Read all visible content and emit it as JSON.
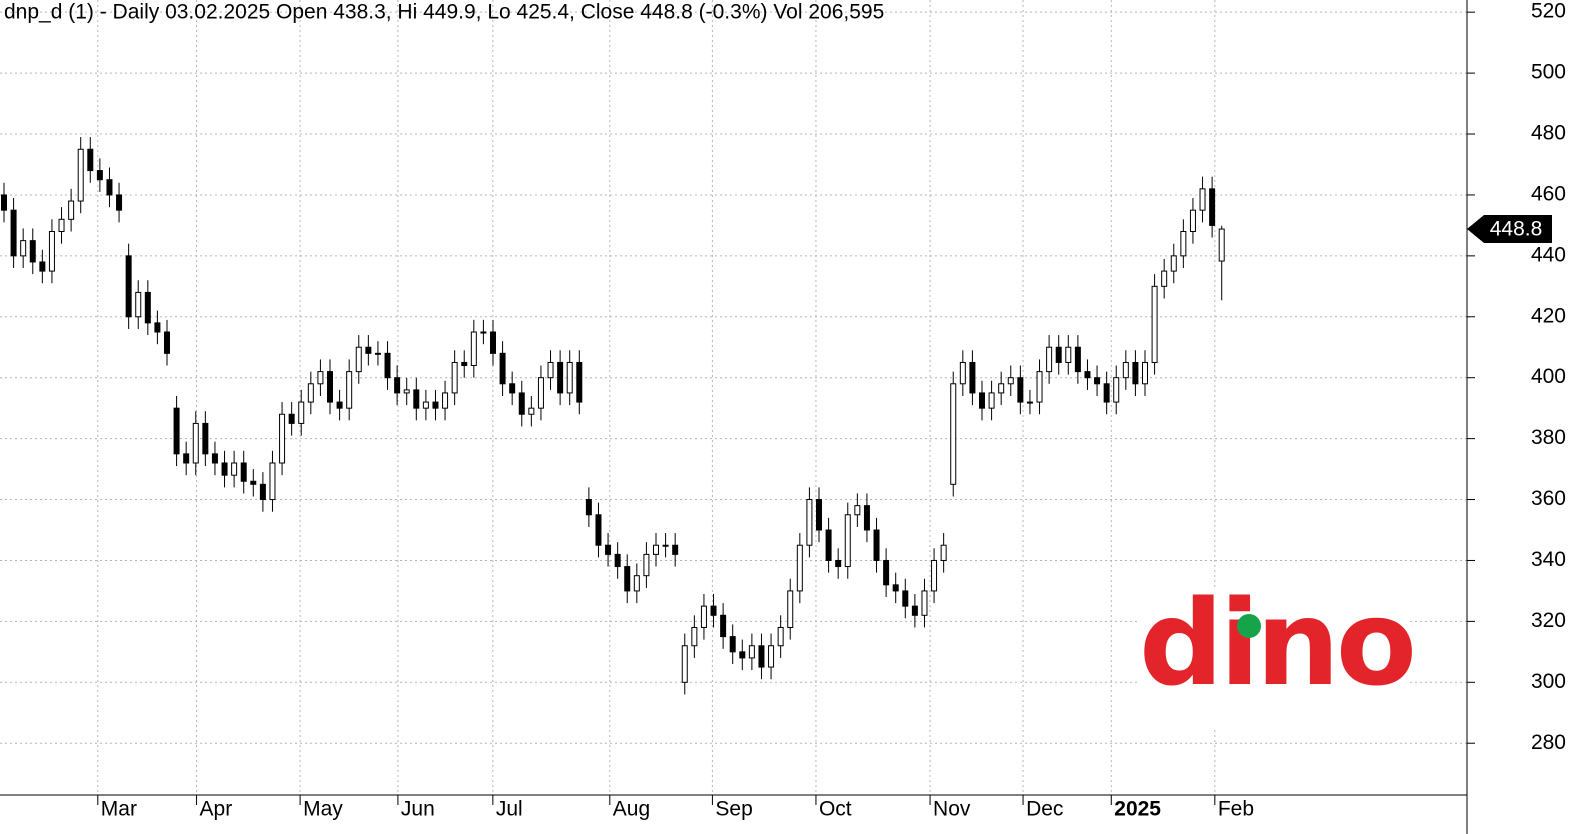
{
  "chart_data": {
    "type": "candlestick",
    "title": "dnp_d (1) - Daily 03.02.2025 Open 438.3, Hi 449.9, Lo 425.4, Close 448.8 (-0.3%) Vol 206,595",
    "logo_text": "dino",
    "up_color": "#ffffff",
    "down_color": "#000000",
    "grid": true,
    "xlim": [
      0,
      153
    ],
    "ylim": [
      263,
      524
    ],
    "xticks": [
      {
        "value": 10.2,
        "label": "Mar"
      },
      {
        "value": 20.5,
        "label": "Apr"
      },
      {
        "value": 31.3,
        "label": "May"
      },
      {
        "value": 41.5,
        "label": "Jun"
      },
      {
        "value": 51.4,
        "label": "Jul"
      },
      {
        "value": 63.6,
        "label": "Aug"
      },
      {
        "value": 74.3,
        "label": "Sep"
      },
      {
        "value": 85.1,
        "label": "Oct"
      },
      {
        "value": 97,
        "label": "Nov"
      },
      {
        "value": 106.7,
        "label": "Dec"
      },
      {
        "value": 115.9,
        "label": "2025"
      },
      {
        "value": 126.7,
        "label": "Feb"
      }
    ],
    "yticks": [
      280,
      300,
      320,
      340,
      360,
      380,
      400,
      420,
      440,
      460,
      480,
      500,
      520
    ],
    "open": [
      460,
      455,
      440,
      445,
      438,
      435,
      448,
      452,
      458,
      475,
      468,
      465,
      460,
      440,
      420,
      428,
      418,
      415,
      390,
      375,
      372,
      385,
      375,
      372,
      368,
      372,
      366,
      365,
      360,
      372,
      388,
      385,
      392,
      398,
      402,
      392,
      390,
      402,
      410,
      408,
      408,
      400,
      395,
      396,
      390,
      392,
      390,
      395,
      405,
      404,
      415,
      415,
      408,
      398,
      395,
      388,
      390,
      400,
      405,
      395,
      405,
      360,
      355,
      345,
      342,
      338,
      330,
      335,
      342,
      345,
      345,
      300,
      312,
      318,
      325,
      322,
      315,
      310,
      308,
      312,
      305,
      312,
      318,
      330,
      345,
      360,
      350,
      340,
      338,
      355,
      358,
      350,
      340,
      332,
      330,
      325,
      322,
      330,
      340,
      365,
      398,
      405,
      395,
      390,
      395,
      398,
      400,
      392,
      392,
      402,
      410,
      405,
      410,
      402,
      400,
      398,
      392,
      400,
      405,
      398,
      405,
      430,
      435,
      440,
      448,
      455,
      462,
      438.3
    ],
    "high": [
      464,
      459,
      449,
      449,
      442,
      452,
      456,
      462,
      479,
      479,
      472,
      469,
      464,
      444,
      432,
      432,
      422,
      419,
      394,
      379,
      389,
      389,
      379,
      376,
      376,
      376,
      370,
      369,
      376,
      392,
      392,
      396,
      402,
      406,
      406,
      396,
      406,
      414,
      414,
      412,
      412,
      404,
      400,
      400,
      396,
      396,
      399,
      409,
      409,
      419,
      419,
      419,
      412,
      402,
      399,
      394,
      404,
      409,
      409,
      409,
      409,
      364,
      359,
      349,
      346,
      342,
      339,
      346,
      349,
      349,
      349,
      316,
      322,
      329,
      329,
      326,
      319,
      314,
      316,
      316,
      316,
      322,
      334,
      349,
      364,
      364,
      354,
      344,
      359,
      362,
      362,
      354,
      344,
      336,
      334,
      329,
      334,
      344,
      349,
      402,
      409,
      409,
      399,
      399,
      402,
      404,
      404,
      396,
      406,
      414,
      414,
      414,
      414,
      406,
      404,
      402,
      404,
      409,
      409,
      409,
      434,
      439,
      444,
      452,
      459,
      466,
      466,
      449.9
    ],
    "low": [
      451,
      436,
      436,
      434,
      431,
      431,
      444,
      448,
      454,
      464,
      461,
      456,
      451,
      416,
      416,
      414,
      411,
      404,
      371,
      368,
      368,
      371,
      368,
      364,
      364,
      362,
      361,
      356,
      356,
      368,
      381,
      381,
      388,
      394,
      388,
      386,
      386,
      398,
      404,
      404,
      396,
      391,
      391,
      386,
      386,
      386,
      386,
      391,
      400,
      400,
      411,
      404,
      394,
      391,
      384,
      384,
      386,
      396,
      391,
      391,
      388,
      351,
      341,
      338,
      334,
      326,
      326,
      331,
      338,
      341,
      338,
      296,
      308,
      314,
      318,
      311,
      306,
      304,
      304,
      301,
      301,
      308,
      314,
      326,
      341,
      346,
      336,
      334,
      334,
      351,
      346,
      336,
      328,
      326,
      321,
      318,
      318,
      326,
      336,
      361,
      394,
      391,
      386,
      386,
      391,
      394,
      388,
      388,
      388,
      398,
      401,
      401,
      398,
      396,
      394,
      388,
      388,
      396,
      394,
      394,
      401,
      426,
      431,
      436,
      444,
      451,
      446,
      425.4
    ],
    "close": [
      455,
      440,
      445,
      438,
      435,
      448,
      452,
      458,
      475,
      468,
      465,
      460,
      455,
      420,
      428,
      418,
      415,
      408,
      375,
      372,
      385,
      375,
      372,
      368,
      372,
      366,
      365,
      360,
      372,
      388,
      385,
      392,
      398,
      402,
      392,
      390,
      402,
      410,
      408,
      408,
      400,
      395,
      396,
      390,
      392,
      390,
      395,
      405,
      404,
      415,
      415,
      408,
      398,
      395,
      388,
      390,
      400,
      405,
      395,
      405,
      392,
      355,
      345,
      342,
      338,
      330,
      335,
      342,
      345,
      345,
      342,
      312,
      318,
      325,
      322,
      315,
      310,
      308,
      312,
      305,
      312,
      318,
      330,
      345,
      360,
      350,
      340,
      338,
      355,
      358,
      350,
      340,
      332,
      330,
      325,
      322,
      330,
      340,
      345,
      398,
      405,
      395,
      390,
      395,
      398,
      400,
      392,
      392,
      402,
      410,
      405,
      410,
      402,
      400,
      398,
      392,
      400,
      405,
      398,
      405,
      430,
      435,
      440,
      448,
      455,
      462,
      450,
      448.8
    ]
  }
}
